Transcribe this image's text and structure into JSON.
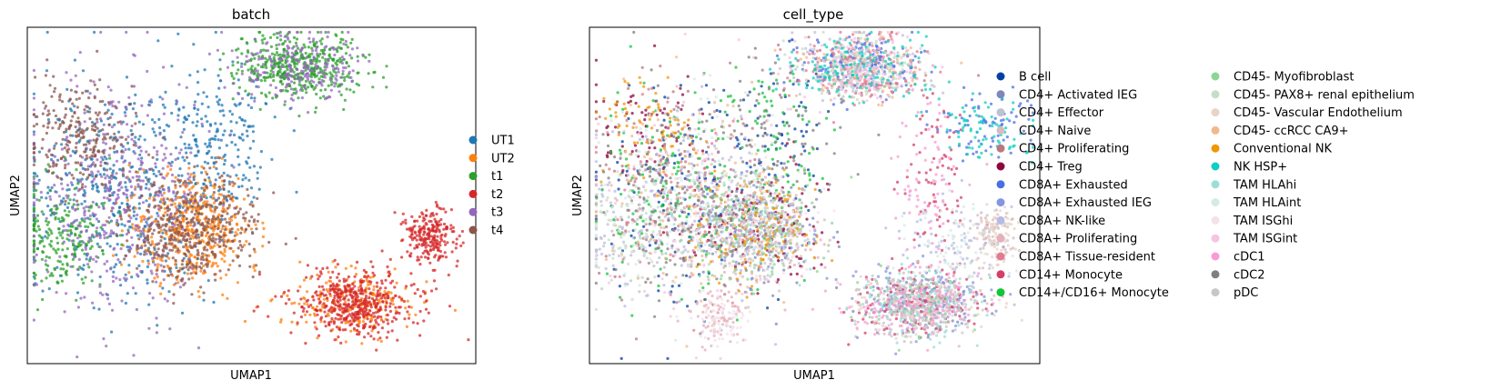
{
  "chart_data": [
    {
      "type": "scatter",
      "title": "batch",
      "xlabel": "UMAP1",
      "ylabel": "UMAP2",
      "grid": false,
      "legend_position": "right",
      "legend_columns": 1,
      "series": [
        {
          "name": "UT1",
          "color": "#1f77b4"
        },
        {
          "name": "UT2",
          "color": "#ff7f0e"
        },
        {
          "name": "t1",
          "color": "#2ca02c"
        },
        {
          "name": "t2",
          "color": "#d62728"
        },
        {
          "name": "t3",
          "color": "#9467bd"
        },
        {
          "name": "t4",
          "color": "#8c564b"
        }
      ]
    },
    {
      "type": "scatter",
      "title": "cell_type",
      "xlabel": "UMAP1",
      "ylabel": "UMAP2",
      "grid": false,
      "legend_position": "right",
      "legend_columns": 2,
      "series": [
        {
          "name": "B cell",
          "color": "#023fa5"
        },
        {
          "name": "CD4+ Activated IEG",
          "color": "#7d87b9"
        },
        {
          "name": "CD4+ Effector",
          "color": "#bec1d4"
        },
        {
          "name": "CD4+ Naive",
          "color": "#d6bcc0"
        },
        {
          "name": "CD4+ Proliferating",
          "color": "#bb7784"
        },
        {
          "name": "CD4+ Treg",
          "color": "#8e063b"
        },
        {
          "name": "CD8A+ Exhausted",
          "color": "#4a6fe3"
        },
        {
          "name": "CD8A+ Exhausted IEG",
          "color": "#8595e1"
        },
        {
          "name": "CD8A+ NK-like",
          "color": "#b5bbe3"
        },
        {
          "name": "CD8A+ Proliferating",
          "color": "#e6afb9"
        },
        {
          "name": "CD8A+ Tissue-resident",
          "color": "#e07b91"
        },
        {
          "name": "CD14+ Monocyte",
          "color": "#d33f6a"
        },
        {
          "name": "CD14+/CD16+ Monocyte",
          "color": "#11c638"
        },
        {
          "name": "CD45- Myofibroblast",
          "color": "#8dd593"
        },
        {
          "name": "CD45- PAX8+ renal epithelium",
          "color": "#c6dec7"
        },
        {
          "name": "CD45- Vascular Endothelium",
          "color": "#ead3c6"
        },
        {
          "name": "CD45- ccRCC CA9+",
          "color": "#f0b98d"
        },
        {
          "name": "Conventional NK",
          "color": "#ef9708"
        },
        {
          "name": "NK HSP+",
          "color": "#0fcfc0"
        },
        {
          "name": "TAM HLAhi",
          "color": "#9cded6"
        },
        {
          "name": "TAM HLAint",
          "color": "#d5eae7"
        },
        {
          "name": "TAM ISGhi",
          "color": "#f3e1eb"
        },
        {
          "name": "TAM ISGint",
          "color": "#f6c4e1"
        },
        {
          "name": "cDC1",
          "color": "#f79cd4"
        },
        {
          "name": "cDC2",
          "color": "#7f7f7f"
        },
        {
          "name": "pDC",
          "color": "#c7c7c7"
        }
      ]
    }
  ]
}
